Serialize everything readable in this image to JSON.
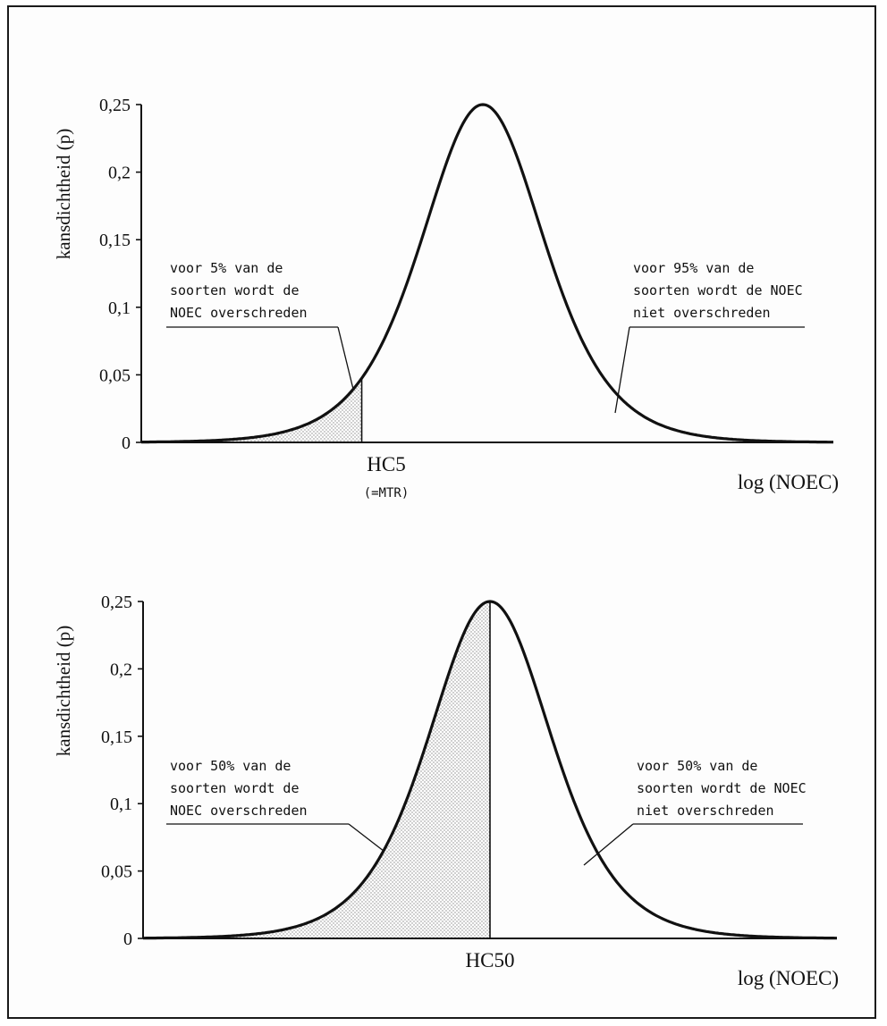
{
  "chart_data": [
    {
      "type": "area",
      "distribution": "logistic",
      "ylabel": "kansdichtheid (p)",
      "xlabel": "log (NOEC)",
      "y_ticks": [
        "0",
        "0,05",
        "0,1",
        "0,15",
        "0,2",
        "0,25"
      ],
      "ylim": [
        0,
        0.25
      ],
      "peak_density": 0.25,
      "shaded_fraction": 0.05,
      "marker_label": "HC5",
      "marker_sublabel": "(=MTR)",
      "annotation_left": [
        "voor 5% van de",
        "soorten wordt de",
        "NOEC overschreden"
      ],
      "annotation_right": [
        "voor 95% van de",
        "soorten wordt de NOEC",
        "niet overschreden"
      ]
    },
    {
      "type": "area",
      "distribution": "logistic",
      "ylabel": "kansdichtheid (p)",
      "xlabel": "log (NOEC)",
      "y_ticks": [
        "0",
        "0,05",
        "0,1",
        "0,15",
        "0,2",
        "0,25"
      ],
      "ylim": [
        0,
        0.25
      ],
      "peak_density": 0.25,
      "shaded_fraction": 0.5,
      "marker_label": "HC50",
      "marker_sublabel": "",
      "annotation_left": [
        "voor 50% van de",
        "soorten wordt de",
        "NOEC overschreden"
      ],
      "annotation_right": [
        "voor 50% van de",
        "soorten wordt de NOEC",
        "niet overschreden"
      ]
    }
  ],
  "colors": {
    "line": "#111111",
    "shade_dot": "#8a8a8a",
    "frame": "#1a1a1a"
  }
}
